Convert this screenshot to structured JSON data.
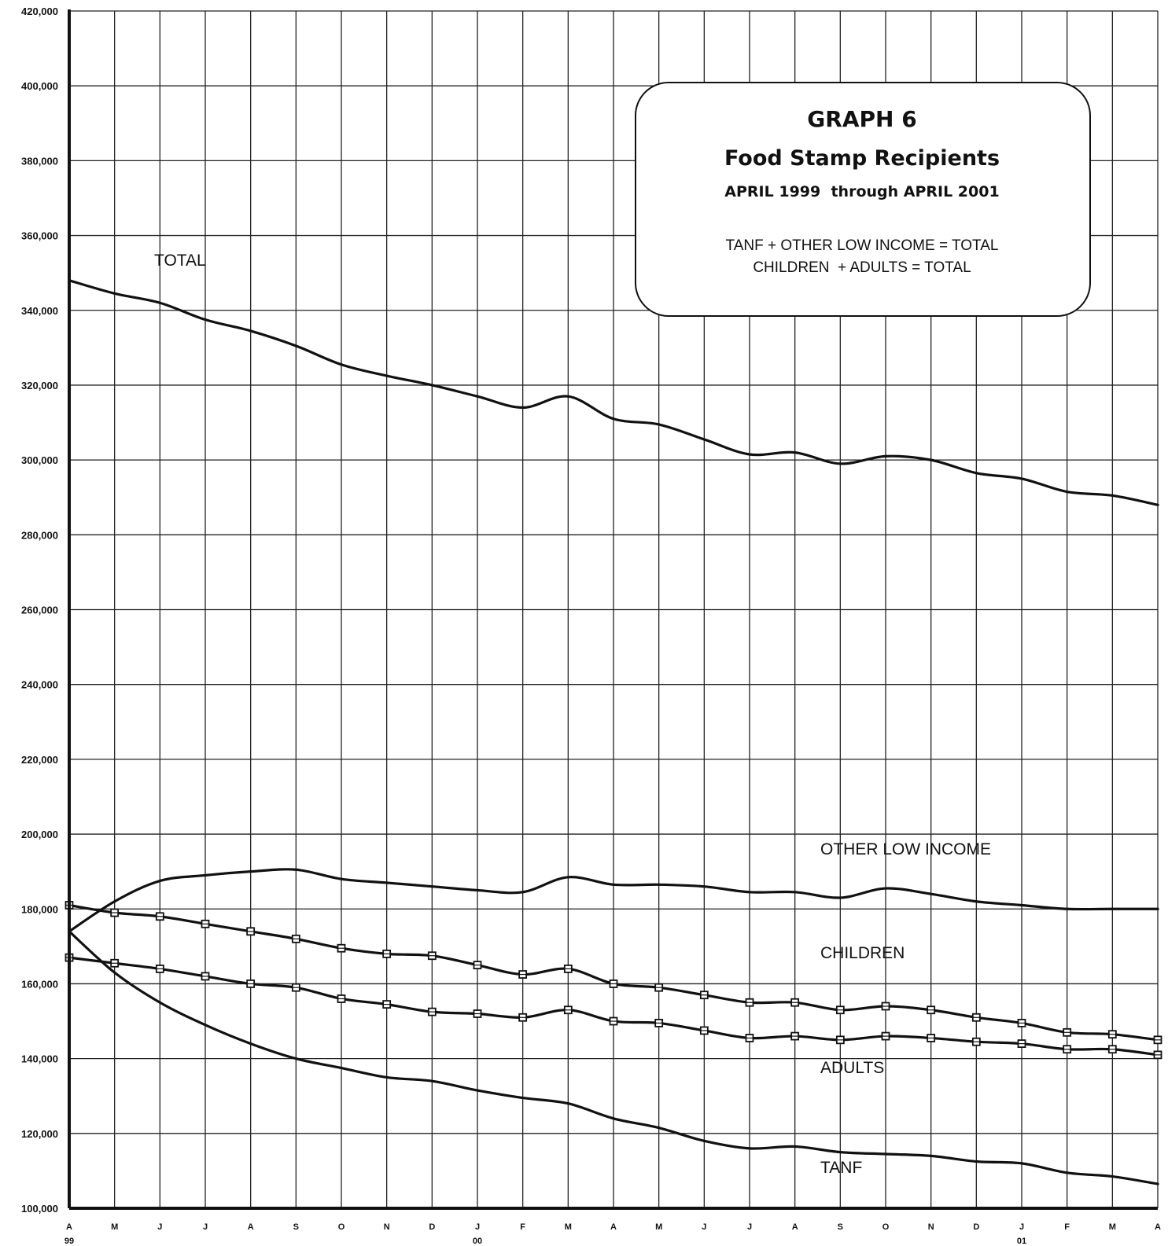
{
  "chart_data": {
    "type": "line",
    "title": "GRAPH 6",
    "subtitle": "Food Stamp Recipients",
    "date_range": "APRIL 1999  through APRIL 2001",
    "notes": [
      "TANF + OTHER LOW INCOME = TOTAL",
      "CHILDREN  + ADULTS = TOTAL"
    ],
    "ylim": [
      100000,
      420000
    ],
    "y_ticks": [
      "100,000",
      "120,000",
      "140,000",
      "160,000",
      "180,000",
      "200,000",
      "220,000",
      "240,000",
      "260,000",
      "280,000",
      "300,000",
      "320,000",
      "340,000",
      "360,000",
      "380,000",
      "400,000",
      "420,000"
    ],
    "x_month_labels": [
      "A",
      "M",
      "J",
      "J",
      "A",
      "S",
      "O",
      "N",
      "D",
      "J",
      "F",
      "M",
      "A",
      "M",
      "J",
      "J",
      "A",
      "S",
      "O",
      "N",
      "D",
      "J",
      "F",
      "M",
      "A"
    ],
    "x_year_labels": [
      {
        "index": 0,
        "label": "99"
      },
      {
        "index": 9,
        "label": "00"
      },
      {
        "index": 21,
        "label": "01"
      }
    ],
    "grid": true,
    "series": [
      {
        "name": "TOTAL",
        "markers": false,
        "values": [
          348000,
          344500,
          342000,
          337500,
          334500,
          330500,
          325500,
          322500,
          320000,
          317000,
          314000,
          317000,
          311000,
          309500,
          305500,
          301500,
          302000,
          299000,
          301000,
          300000,
          296500,
          295000,
          291500,
          290500,
          288000
        ]
      },
      {
        "name": "OTHER LOW INCOME",
        "markers": false,
        "values": [
          174000,
          182000,
          187500,
          189000,
          190000,
          190500,
          188000,
          187000,
          186000,
          185000,
          184500,
          188500,
          186500,
          186500,
          186000,
          184500,
          184500,
          183000,
          185500,
          184000,
          182000,
          181000,
          180000,
          180000,
          180000
        ]
      },
      {
        "name": "CHILDREN",
        "markers": true,
        "values": [
          181000,
          179000,
          178000,
          176000,
          174000,
          172000,
          169500,
          168000,
          167500,
          165000,
          162500,
          164000,
          160000,
          159000,
          157000,
          155000,
          155000,
          153000,
          154000,
          153000,
          151000,
          149500,
          147000,
          146500,
          145000
        ]
      },
      {
        "name": "ADULTS",
        "markers": true,
        "values": [
          167000,
          165500,
          164000,
          162000,
          160000,
          159000,
          156000,
          154500,
          152500,
          152000,
          151000,
          153000,
          150000,
          149500,
          147500,
          145500,
          146000,
          145000,
          146000,
          145500,
          144500,
          144000,
          142500,
          142500,
          141000
        ]
      },
      {
        "name": "TANF",
        "markers": false,
        "values": [
          174000,
          163000,
          155000,
          149000,
          144000,
          140000,
          137500,
          135000,
          134000,
          131500,
          129500,
          128000,
          124000,
          121500,
          118000,
          116000,
          116500,
          115000,
          114500,
          114000,
          112500,
          112000,
          109500,
          108500,
          106500
        ]
      }
    ]
  }
}
